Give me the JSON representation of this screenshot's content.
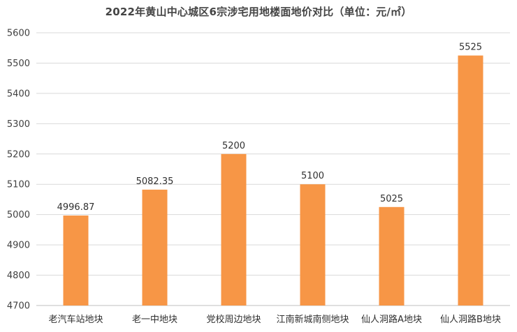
{
  "chart_data": {
    "type": "bar",
    "title": "2022年黄山中心城区6宗涉宅用地楼面地价对比（单位：元/㎡）",
    "categories": [
      "老汽车站地块",
      "老一中地块",
      "党校周边地块",
      "江南新城南侧地块",
      "仙人洞路A地块",
      "仙人洞路B地块"
    ],
    "values": [
      4996.87,
      5082.35,
      5200,
      5100,
      5025,
      5525
    ],
    "data_labels": [
      "4996.87",
      "5082.35",
      "5200",
      "5100",
      "5025",
      "5525"
    ],
    "ylim": [
      4700,
      5600
    ],
    "yticks": [
      4700,
      4800,
      4900,
      5000,
      5100,
      5200,
      5300,
      5400,
      5500,
      5600
    ],
    "xlabel": "",
    "ylabel": "",
    "grid": true,
    "bar_color": "#F79646",
    "grid_color": "#D9D9D9"
  }
}
